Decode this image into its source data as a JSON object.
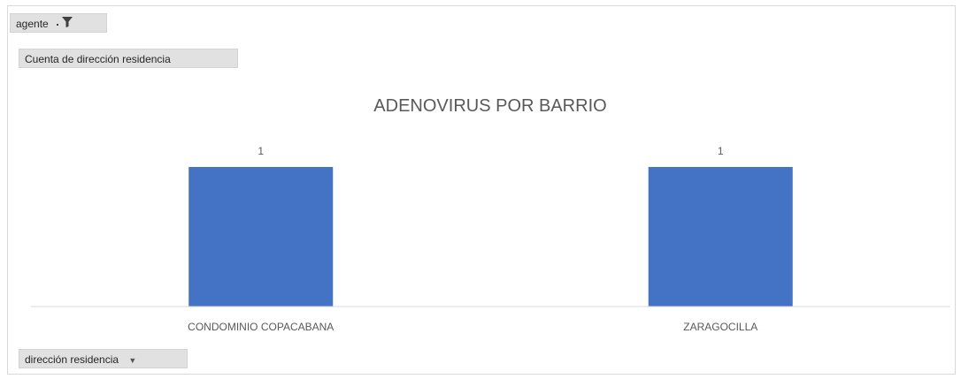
{
  "filter_field": {
    "label": "agente"
  },
  "value_field": {
    "label": "Cuenta de dirección residencia"
  },
  "axis_field": {
    "label": "dirección residencia"
  },
  "colors": {
    "bar": "#4472C4",
    "text": "#595959",
    "axis": "#d9d9d9"
  },
  "icons": {
    "filter": "filter-icon",
    "dropdown": "chevron-down-icon"
  },
  "chart_data": {
    "type": "bar",
    "title": "ADENOVIRUS POR BARRIO",
    "categories": [
      "CONDOMINIO COPACABANA",
      "ZARAGOCILLA"
    ],
    "values": [
      1,
      1
    ],
    "data_labels": [
      "1",
      "1"
    ],
    "ylim": [
      0,
      1
    ],
    "grid": false,
    "legend": "none"
  }
}
